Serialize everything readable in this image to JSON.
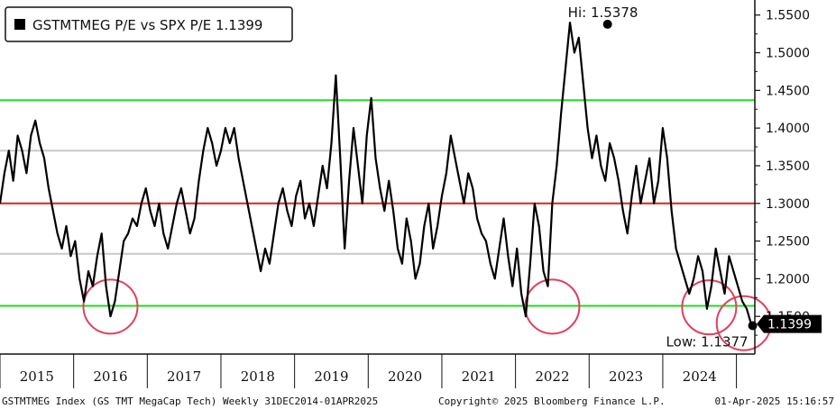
{
  "chart_data": {
    "type": "line",
    "title": "",
    "legend": {
      "label": "GSTMTMEG P/E vs SPX P/E 1.1399",
      "placement": "top-left"
    },
    "xlabel": "",
    "ylabel": "",
    "y_axis_side": "right",
    "ylim": [
      1.1,
      1.57
    ],
    "y_ticks": [
      "1.5500",
      "1.5000",
      "1.4500",
      "1.4000",
      "1.3500",
      "1.3000",
      "1.2500",
      "1.2000",
      "1.1500"
    ],
    "x_ticks": [
      "2015",
      "2016",
      "2017",
      "2018",
      "2019",
      "2020",
      "2021",
      "2022",
      "2023",
      "2024"
    ],
    "xlim": [
      2015.0,
      2025.25
    ],
    "series": [
      {
        "name": "GSTMTMEG P/E vs SPX P/E",
        "x": [
          2015.0,
          2015.06,
          2015.12,
          2015.18,
          2015.24,
          2015.3,
          2015.36,
          2015.42,
          2015.48,
          2015.54,
          2015.6,
          2015.66,
          2015.72,
          2015.78,
          2015.84,
          2015.9,
          2015.96,
          2016.02,
          2016.08,
          2016.14,
          2016.2,
          2016.26,
          2016.32,
          2016.38,
          2016.44,
          2016.5,
          2016.56,
          2016.62,
          2016.68,
          2016.74,
          2016.8,
          2016.86,
          2016.92,
          2016.98,
          2017.04,
          2017.1,
          2017.16,
          2017.22,
          2017.28,
          2017.34,
          2017.4,
          2017.46,
          2017.52,
          2017.58,
          2017.64,
          2017.7,
          2017.76,
          2017.82,
          2017.88,
          2017.94,
          2018.0,
          2018.06,
          2018.12,
          2018.18,
          2018.24,
          2018.3,
          2018.36,
          2018.42,
          2018.48,
          2018.54,
          2018.6,
          2018.66,
          2018.72,
          2018.78,
          2018.84,
          2018.9,
          2018.96,
          2019.02,
          2019.08,
          2019.14,
          2019.2,
          2019.26,
          2019.32,
          2019.38,
          2019.44,
          2019.5,
          2019.56,
          2019.62,
          2019.68,
          2019.74,
          2019.8,
          2019.86,
          2019.92,
          2019.98,
          2020.04,
          2020.1,
          2020.16,
          2020.22,
          2020.28,
          2020.34,
          2020.4,
          2020.46,
          2020.52,
          2020.58,
          2020.64,
          2020.7,
          2020.76,
          2020.82,
          2020.88,
          2020.94,
          2021.0,
          2021.06,
          2021.12,
          2021.18,
          2021.24,
          2021.3,
          2021.36,
          2021.42,
          2021.48,
          2021.54,
          2021.6,
          2021.66,
          2021.72,
          2021.78,
          2021.84,
          2021.9,
          2021.96,
          2022.02,
          2022.08,
          2022.14,
          2022.2,
          2022.26,
          2022.32,
          2022.38,
          2022.44,
          2022.5,
          2022.56,
          2022.62,
          2022.68,
          2022.74,
          2022.8,
          2022.86,
          2022.92,
          2022.98,
          2023.04,
          2023.1,
          2023.16,
          2023.22,
          2023.28,
          2023.34,
          2023.4,
          2023.46,
          2023.52,
          2023.58,
          2023.64,
          2023.7,
          2023.76,
          2023.82,
          2023.88,
          2023.94,
          2024.0,
          2024.06,
          2024.12,
          2024.18,
          2024.24,
          2024.3,
          2024.36,
          2024.42,
          2024.48,
          2024.54,
          2024.6,
          2024.66,
          2024.72,
          2024.78,
          2024.84,
          2024.9,
          2024.96,
          2025.02,
          2025.08,
          2025.14,
          2025.2,
          2025.25
        ],
        "values": [
          1.3,
          1.34,
          1.37,
          1.33,
          1.39,
          1.37,
          1.34,
          1.39,
          1.41,
          1.38,
          1.36,
          1.32,
          1.29,
          1.26,
          1.24,
          1.27,
          1.23,
          1.25,
          1.2,
          1.17,
          1.21,
          1.19,
          1.23,
          1.26,
          1.19,
          1.15,
          1.17,
          1.21,
          1.25,
          1.26,
          1.28,
          1.27,
          1.3,
          1.32,
          1.29,
          1.27,
          1.3,
          1.26,
          1.24,
          1.27,
          1.3,
          1.32,
          1.29,
          1.26,
          1.28,
          1.33,
          1.37,
          1.4,
          1.38,
          1.35,
          1.37,
          1.4,
          1.38,
          1.4,
          1.36,
          1.33,
          1.3,
          1.27,
          1.24,
          1.21,
          1.24,
          1.22,
          1.26,
          1.3,
          1.32,
          1.29,
          1.27,
          1.31,
          1.33,
          1.28,
          1.3,
          1.27,
          1.31,
          1.35,
          1.32,
          1.38,
          1.47,
          1.36,
          1.24,
          1.33,
          1.4,
          1.35,
          1.3,
          1.39,
          1.44,
          1.36,
          1.32,
          1.29,
          1.33,
          1.29,
          1.24,
          1.22,
          1.28,
          1.25,
          1.2,
          1.22,
          1.27,
          1.3,
          1.24,
          1.27,
          1.31,
          1.34,
          1.39,
          1.36,
          1.33,
          1.3,
          1.34,
          1.32,
          1.28,
          1.26,
          1.25,
          1.22,
          1.2,
          1.24,
          1.28,
          1.23,
          1.19,
          1.24,
          1.18,
          1.15,
          1.22,
          1.3,
          1.27,
          1.21,
          1.19,
          1.3,
          1.35,
          1.42,
          1.48,
          1.54,
          1.5,
          1.52,
          1.46,
          1.4,
          1.36,
          1.39,
          1.35,
          1.33,
          1.38,
          1.36,
          1.33,
          1.29,
          1.26,
          1.31,
          1.35,
          1.3,
          1.33,
          1.36,
          1.3,
          1.33,
          1.4,
          1.36,
          1.29,
          1.24,
          1.22,
          1.2,
          1.18,
          1.2,
          1.23,
          1.21,
          1.16,
          1.19,
          1.24,
          1.21,
          1.18,
          1.23,
          1.21,
          1.19,
          1.17,
          1.16,
          1.1399,
          1.14
        ]
      }
    ],
    "reference_lines": [
      {
        "value": 1.437,
        "color": "#22dd22"
      },
      {
        "value": 1.37,
        "color": "#c8c8c8"
      },
      {
        "value": 1.3,
        "color": "#e02020"
      },
      {
        "value": 1.233,
        "color": "#c8c8c8"
      },
      {
        "value": 1.164,
        "color": "#22dd22"
      }
    ],
    "annotations": {
      "high_label": "Hi: 1.5378",
      "high_value": 1.5378,
      "high_x": 2023.25,
      "low_label": "Low: 1.1377",
      "low_value": 1.1377,
      "low_x": 2025.22,
      "last_value_tag": "1.1399"
    },
    "highlight_circles": [
      {
        "x": 2016.5,
        "value": 1.163
      },
      {
        "x": 2022.5,
        "value": 1.163
      },
      {
        "x": 2024.63,
        "value": 1.162
      },
      {
        "x": 2025.1,
        "value": 1.141
      }
    ],
    "colors": {
      "line": "#000000",
      "circle": "#e0405e",
      "tag_bg": "#000000"
    }
  },
  "footer": {
    "left": "GSTMTMEG Index (GS TMT MegaCap Tech)  Weekly 31DEC2014-01APR2025",
    "center": "Copyright© 2025 Bloomberg Finance L.P.",
    "right": "01-Apr-2025 15:16:57"
  }
}
